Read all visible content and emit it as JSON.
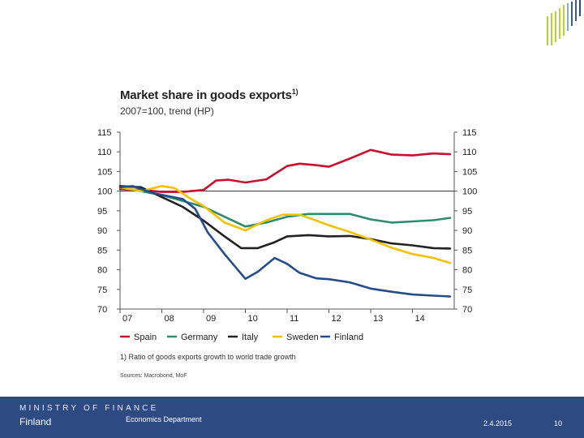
{
  "chart_data": {
    "type": "line",
    "title": "Market share in goods exports",
    "title_superscript": "1)",
    "subtitle": "2007=100, trend (HP)",
    "ylim": [
      70,
      115
    ],
    "y_ticks": [
      115,
      110,
      105,
      100,
      95,
      90,
      85,
      80,
      75,
      70
    ],
    "xlim": [
      2007.0,
      2015.0
    ],
    "x_ticks": [
      {
        "label": "07",
        "value": 2007.0
      },
      {
        "label": "08",
        "value": 2008.0
      },
      {
        "label": "09",
        "value": 2009.0
      },
      {
        "label": "10",
        "value": 2010.0
      },
      {
        "label": "11",
        "value": 2011.0
      },
      {
        "label": "12",
        "value": 2012.0
      },
      {
        "label": "13",
        "value": 2013.0
      },
      {
        "label": "14",
        "value": 2014.0
      }
    ],
    "reference_line": 100,
    "series": [
      {
        "name": "Spain",
        "color": "#c8102e",
        "points": [
          [
            2007.0,
            100.5
          ],
          [
            2007.5,
            100.3
          ],
          [
            2008.0,
            99.8
          ],
          [
            2008.5,
            99.8
          ],
          [
            2009.0,
            100.3
          ],
          [
            2009.3,
            102.7
          ],
          [
            2009.6,
            102.9
          ],
          [
            2010.0,
            102.2
          ],
          [
            2010.5,
            103.0
          ],
          [
            2011.0,
            106.4
          ],
          [
            2011.3,
            107.0
          ],
          [
            2011.7,
            106.6
          ],
          [
            2012.0,
            106.2
          ],
          [
            2012.5,
            108.3
          ],
          [
            2013.0,
            110.5
          ],
          [
            2013.5,
            109.3
          ],
          [
            2014.0,
            109.1
          ],
          [
            2014.5,
            109.6
          ],
          [
            2014.9,
            109.4
          ]
        ]
      },
      {
        "name": "Germany",
        "color": "#2e8b6e",
        "points": [
          [
            2007.0,
            101.0
          ],
          [
            2007.5,
            100.0
          ],
          [
            2008.0,
            99.0
          ],
          [
            2008.5,
            97.5
          ],
          [
            2009.0,
            96.0
          ],
          [
            2009.5,
            93.5
          ],
          [
            2010.0,
            91.0
          ],
          [
            2010.5,
            92.0
          ],
          [
            2011.0,
            93.5
          ],
          [
            2011.5,
            94.2
          ],
          [
            2012.0,
            94.2
          ],
          [
            2012.5,
            94.2
          ],
          [
            2013.0,
            92.8
          ],
          [
            2013.5,
            92.0
          ],
          [
            2014.0,
            92.3
          ],
          [
            2014.5,
            92.6
          ],
          [
            2014.9,
            93.2
          ]
        ]
      },
      {
        "name": "Italy",
        "color": "#222222",
        "points": [
          [
            2007.0,
            101.3
          ],
          [
            2007.5,
            101.0
          ],
          [
            2008.0,
            98.5
          ],
          [
            2008.5,
            96.0
          ],
          [
            2009.0,
            92.5
          ],
          [
            2009.5,
            88.5
          ],
          [
            2009.9,
            85.5
          ],
          [
            2010.3,
            85.5
          ],
          [
            2010.7,
            87.0
          ],
          [
            2011.0,
            88.5
          ],
          [
            2011.5,
            88.8
          ],
          [
            2012.0,
            88.5
          ],
          [
            2012.5,
            88.6
          ],
          [
            2013.0,
            87.8
          ],
          [
            2013.5,
            86.7
          ],
          [
            2014.0,
            86.2
          ],
          [
            2014.5,
            85.5
          ],
          [
            2014.9,
            85.4
          ]
        ]
      },
      {
        "name": "Sweden",
        "color": "#f2c200",
        "points": [
          [
            2007.0,
            101.0
          ],
          [
            2007.5,
            100.0
          ],
          [
            2008.0,
            101.3
          ],
          [
            2008.3,
            100.8
          ],
          [
            2008.7,
            98.0
          ],
          [
            2009.0,
            96.2
          ],
          [
            2009.5,
            92.0
          ],
          [
            2010.0,
            90.0
          ],
          [
            2010.5,
            92.6
          ],
          [
            2010.9,
            94.0
          ],
          [
            2011.3,
            94.0
          ],
          [
            2011.7,
            92.5
          ],
          [
            2012.0,
            91.3
          ],
          [
            2012.5,
            89.6
          ],
          [
            2013.0,
            87.7
          ],
          [
            2013.5,
            85.6
          ],
          [
            2014.0,
            84.0
          ],
          [
            2014.5,
            83.0
          ],
          [
            2014.9,
            81.7
          ]
        ]
      },
      {
        "name": "Finland",
        "color": "#254c8a",
        "points": [
          [
            2007.0,
            101.0
          ],
          [
            2007.3,
            101.3
          ],
          [
            2007.8,
            99.5
          ],
          [
            2008.5,
            98.0
          ],
          [
            2008.8,
            95.5
          ],
          [
            2009.1,
            89.5
          ],
          [
            2009.5,
            84.0
          ],
          [
            2010.0,
            77.7
          ],
          [
            2010.3,
            79.5
          ],
          [
            2010.7,
            83.0
          ],
          [
            2011.0,
            81.5
          ],
          [
            2011.3,
            79.2
          ],
          [
            2011.7,
            77.8
          ],
          [
            2012.0,
            77.6
          ],
          [
            2012.5,
            76.8
          ],
          [
            2013.0,
            75.2
          ],
          [
            2013.5,
            74.4
          ],
          [
            2014.0,
            73.7
          ],
          [
            2014.5,
            73.4
          ],
          [
            2014.9,
            73.2
          ]
        ]
      }
    ],
    "legend_position": "bottom",
    "footnote": "1) Ratio of goods exports growth to world trade growth",
    "sources": "Sources: Macrobond, MoF"
  },
  "footer": {
    "ministry": "MINISTRY OF FINANCE",
    "country": "Finland",
    "department": "Economics Department",
    "date": "2.4.2015",
    "page": "10"
  },
  "colors": {
    "footer_bg": "#2e4a82",
    "deco_green": "#b8d432",
    "deco_blue": "#3c5aa0"
  }
}
